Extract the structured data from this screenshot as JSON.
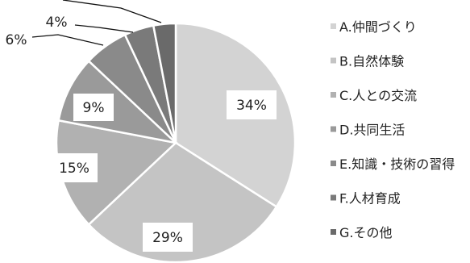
{
  "chart_data": {
    "type": "pie",
    "categories": [
      "A.仲間づくり",
      "B.自然体験",
      "C.人との交流",
      "D.共同生活",
      "E.知識・技術の習得",
      "F.人材育成",
      "G.その他"
    ],
    "labels": [
      "34%",
      "29%",
      "15%",
      "9%",
      "6%",
      "4%",
      ""
    ],
    "values": [
      34,
      29,
      15,
      9,
      6,
      4,
      3
    ],
    "colors": [
      "#d3d3d3",
      "#c4c4c4",
      "#b1b1b1",
      "#9a9a9a",
      "#8a8a8a",
      "#7a7a7a",
      "#6a6a6a"
    ],
    "legend_position": "right"
  }
}
